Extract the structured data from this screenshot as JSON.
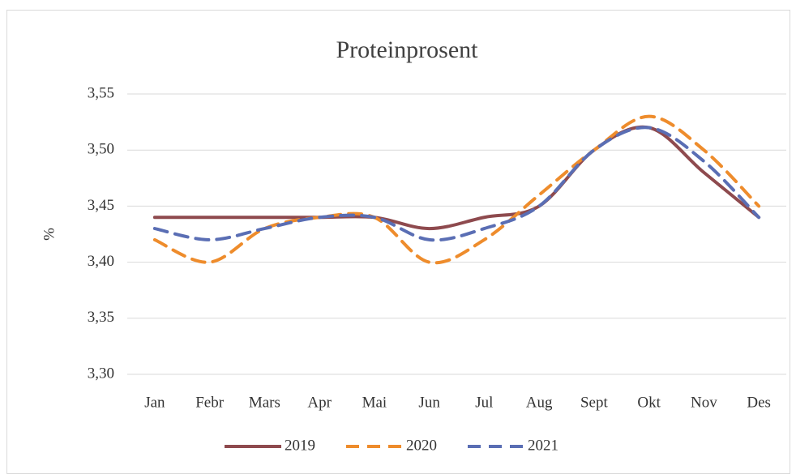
{
  "chart_data": {
    "type": "line",
    "title": "Proteinprosent",
    "y_label": "%",
    "categories": [
      "Jan",
      "Febr",
      "Mars",
      "Apr",
      "Mai",
      "Jun",
      "Jul",
      "Aug",
      "Sept",
      "Okt",
      "Nov",
      "Des"
    ],
    "series": [
      {
        "name": "2019",
        "color": "#8e4a4e",
        "dashed": false,
        "values": [
          3.44,
          3.44,
          3.44,
          3.44,
          3.44,
          3.43,
          3.44,
          3.45,
          3.5,
          3.52,
          3.48,
          3.44
        ]
      },
      {
        "name": "2020",
        "color": "#ee8c2c",
        "dashed": true,
        "values": [
          3.42,
          3.4,
          3.43,
          3.44,
          3.44,
          3.4,
          3.42,
          3.46,
          3.5,
          3.53,
          3.5,
          3.45
        ]
      },
      {
        "name": "2021",
        "color": "#5a6eb4",
        "dashed": true,
        "values": [
          3.43,
          3.42,
          3.43,
          3.44,
          3.44,
          3.42,
          3.43,
          3.45,
          3.5,
          3.52,
          3.49,
          3.44
        ]
      }
    ],
    "ylim": [
      3.3,
      3.55
    ],
    "yticks": [
      {
        "value": 3.3,
        "label": "3,30"
      },
      {
        "value": 3.35,
        "label": "3,35"
      },
      {
        "value": 3.4,
        "label": "3,40"
      },
      {
        "value": 3.45,
        "label": "3,45"
      },
      {
        "value": 3.5,
        "label": "3,50"
      },
      {
        "value": 3.55,
        "label": "3,55"
      }
    ],
    "grid": true,
    "legend": "bottom"
  }
}
